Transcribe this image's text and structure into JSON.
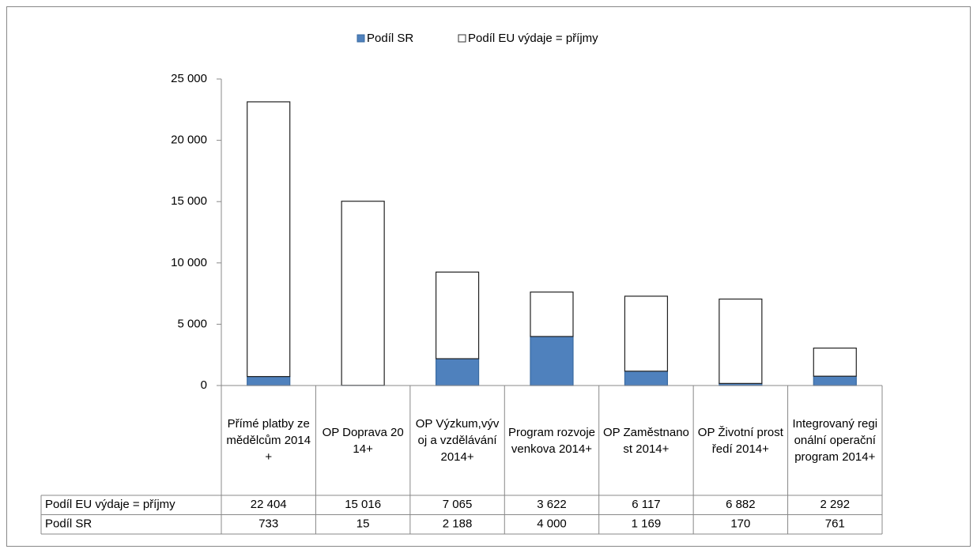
{
  "chart_data": {
    "type": "bar",
    "stacked": true,
    "categories": [
      "Přímé platby zemědělcům 2014+",
      "OP Doprava 2014+",
      "OP Výzkum,vývoj a vzdělávání 2014+",
      "Program rozvoje venkova 2014+",
      "OP Zaměstnanost 2014+",
      "OP Životní prostředí 2014+",
      "Integrovaný regionální operační program 2014+"
    ],
    "series": [
      {
        "name": "Podíl SR",
        "color": "#4f81bd",
        "values": [
          733,
          15,
          2188,
          4000,
          1169,
          170,
          761
        ],
        "value_labels": [
          "733",
          "15",
          "2 188",
          "4 000",
          "1 169",
          "170",
          "761"
        ]
      },
      {
        "name": "Podíl EU  výdaje = příjmy",
        "color": "#ffffff",
        "values": [
          22404,
          15016,
          7065,
          3622,
          6117,
          6882,
          2292
        ],
        "value_labels": [
          "22 404",
          "15 016",
          "7 065",
          "3 622",
          "6 117",
          "6 882",
          "2 292"
        ]
      }
    ],
    "ylim": [
      0,
      25000
    ],
    "yticks": [
      0,
      {
        "value": 5000,
        "label": "5 000"
      },
      {
        "value": 10000,
        "label": "10 000"
      },
      {
        "value": 15000,
        "label": "15 000"
      },
      {
        "value": 20000,
        "label": "20 000"
      },
      {
        "value": 25000,
        "label": "25 000"
      }
    ],
    "legend": "top",
    "data_table": true
  }
}
